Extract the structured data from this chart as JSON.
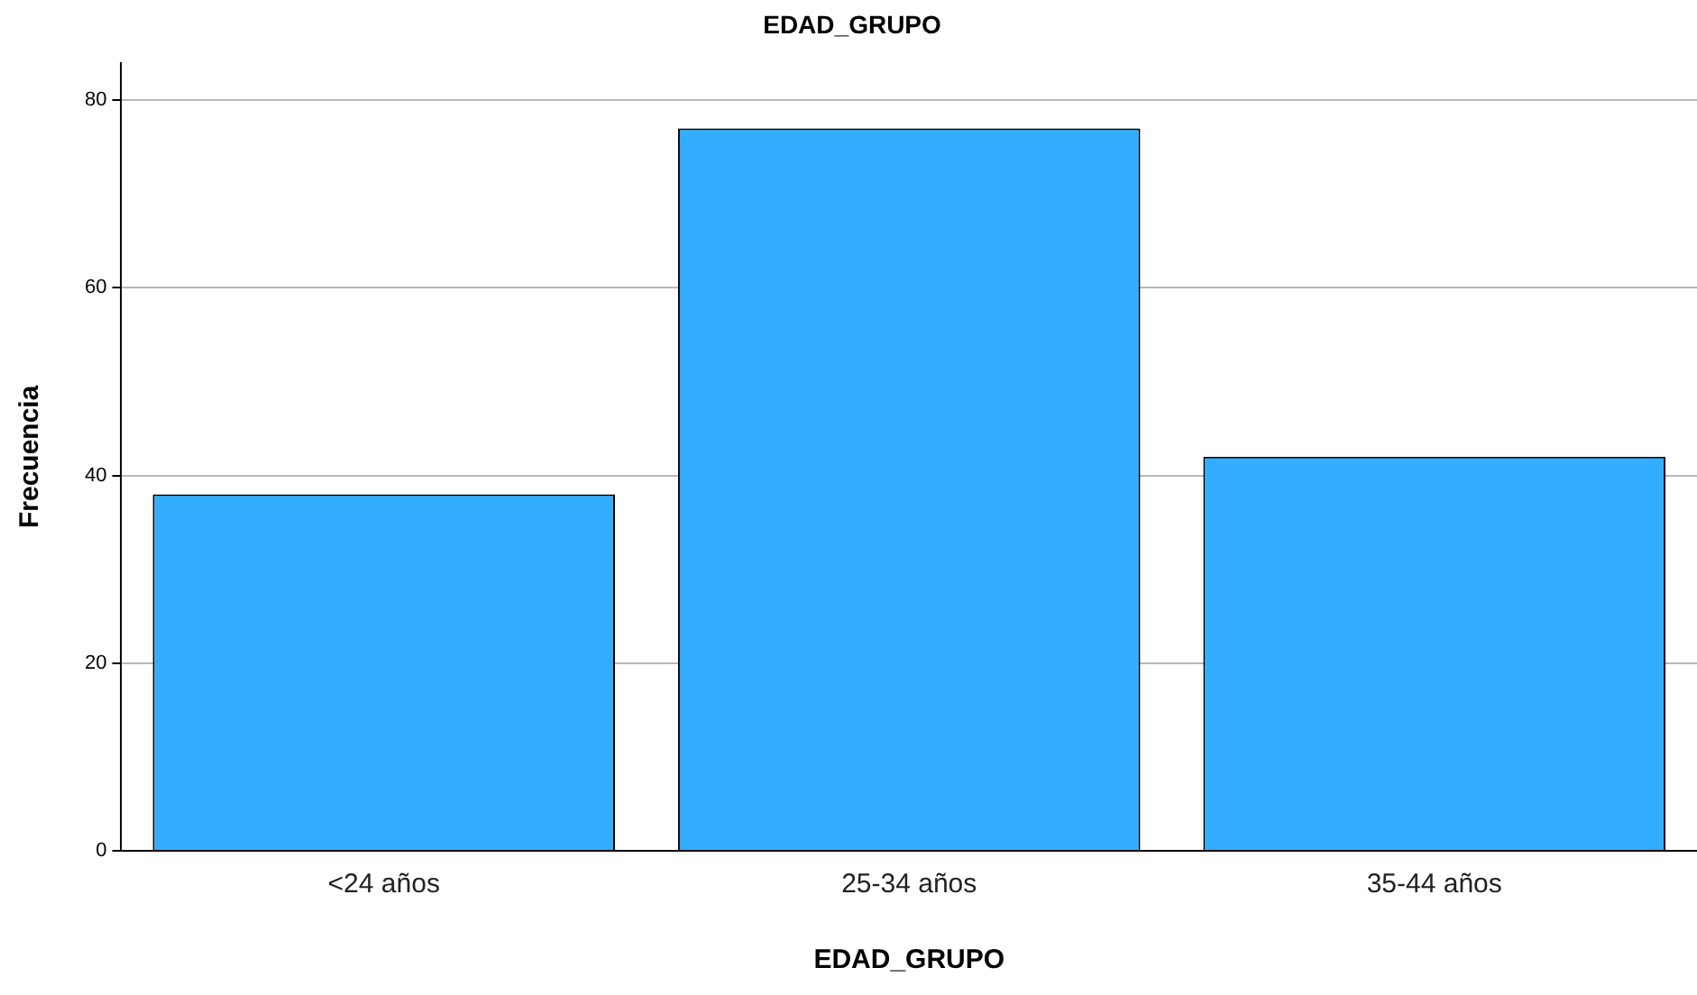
{
  "chart_data": {
    "type": "bar",
    "title": "EDAD_GRUPO",
    "xlabel": "EDAD_GRUPO",
    "ylabel": "Frecuencia",
    "categories": [
      "<24 años",
      "25-34 años",
      "35-44 años"
    ],
    "values": [
      38,
      77,
      42
    ],
    "color": "#33adff",
    "ylim": [
      0,
      84
    ],
    "yticks": [
      0,
      20,
      40,
      60,
      80
    ],
    "grid": "y",
    "legend": false
  }
}
